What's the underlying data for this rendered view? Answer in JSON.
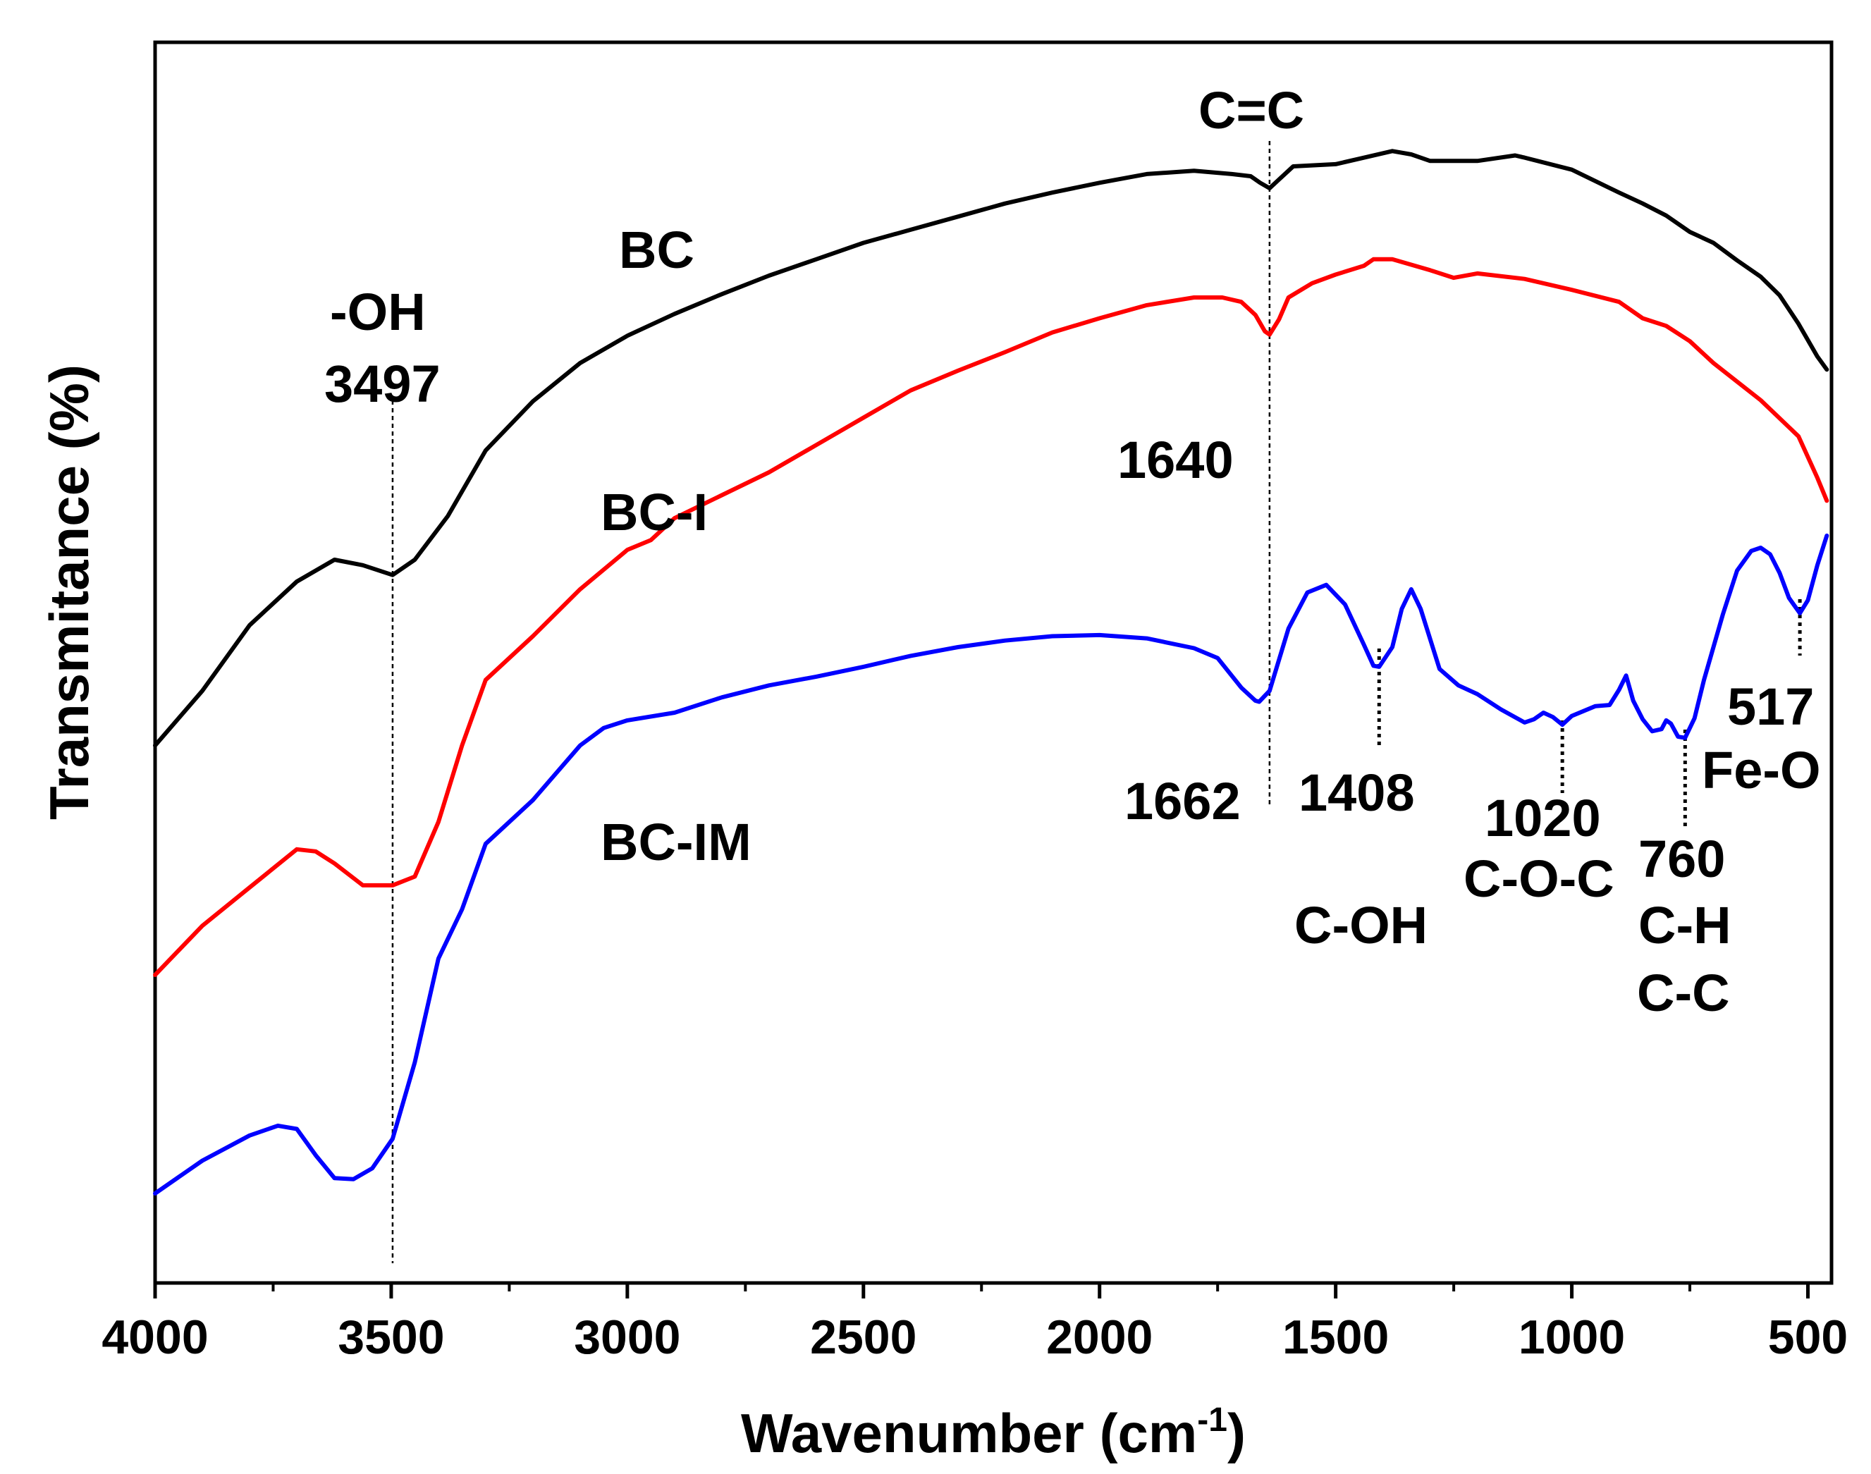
{
  "chart_data": {
    "type": "line",
    "title": "",
    "xlabel": "Wavenumber (cm",
    "xlabel_sup": "-1",
    "xlabel_close": ")",
    "ylabel": "Transmitance (%)",
    "xlim": [
      4000,
      450
    ],
    "x_reversed": true,
    "x_ticks": [
      4000,
      3500,
      3000,
      2500,
      2000,
      1500,
      1000,
      500
    ],
    "y_ticks": [],
    "ylim": [
      0,
      100
    ],
    "grid": false,
    "legend": "inline labels",
    "series": [
      {
        "name": "BC",
        "label": "BC",
        "color": "#000000",
        "points": [
          [
            4000,
            45
          ],
          [
            3900,
            50
          ],
          [
            3800,
            56
          ],
          [
            3700,
            60
          ],
          [
            3620,
            62
          ],
          [
            3560,
            61.5
          ],
          [
            3497,
            60.6
          ],
          [
            3450,
            62
          ],
          [
            3380,
            66
          ],
          [
            3300,
            72
          ],
          [
            3200,
            76.5
          ],
          [
            3100,
            80
          ],
          [
            3000,
            82.5
          ],
          [
            2900,
            84.5
          ],
          [
            2800,
            86.3
          ],
          [
            2700,
            88
          ],
          [
            2600,
            89.5
          ],
          [
            2500,
            91
          ],
          [
            2400,
            92.2
          ],
          [
            2300,
            93.4
          ],
          [
            2200,
            94.6
          ],
          [
            2100,
            95.6
          ],
          [
            2000,
            96.5
          ],
          [
            1900,
            97.3
          ],
          [
            1800,
            97.6
          ],
          [
            1720,
            97.3
          ],
          [
            1680,
            97.1
          ],
          [
            1660,
            96.5
          ],
          [
            1640,
            96.0
          ],
          [
            1620,
            96.8
          ],
          [
            1590,
            98
          ],
          [
            1500,
            98.2
          ],
          [
            1450,
            98.7
          ],
          [
            1380,
            99.4
          ],
          [
            1340,
            99.1
          ],
          [
            1300,
            98.5
          ],
          [
            1200,
            98.5
          ],
          [
            1120,
            99.0
          ],
          [
            1100,
            98.8
          ],
          [
            1000,
            97.7
          ],
          [
            900,
            95.6
          ],
          [
            850,
            94.6
          ],
          [
            800,
            93.5
          ],
          [
            750,
            92
          ],
          [
            700,
            91
          ],
          [
            650,
            89.4
          ],
          [
            600,
            87.9
          ],
          [
            560,
            86.2
          ],
          [
            520,
            83.6
          ],
          [
            480,
            80.6
          ],
          [
            460,
            79.4
          ]
        ]
      },
      {
        "name": "BC-I",
        "label": "BC-I",
        "color": "#ff0000",
        "points": [
          [
            4000,
            24
          ],
          [
            3900,
            28.5
          ],
          [
            3800,
            32
          ],
          [
            3700,
            35.5
          ],
          [
            3660,
            35.3
          ],
          [
            3620,
            34.2
          ],
          [
            3560,
            32.2
          ],
          [
            3497,
            32.2
          ],
          [
            3450,
            33
          ],
          [
            3400,
            38
          ],
          [
            3350,
            45
          ],
          [
            3300,
            51
          ],
          [
            3200,
            55
          ],
          [
            3100,
            59.3
          ],
          [
            3000,
            62.9
          ],
          [
            2950,
            63.8
          ],
          [
            2900,
            65.8
          ],
          [
            2800,
            67.9
          ],
          [
            2700,
            70
          ],
          [
            2600,
            72.5
          ],
          [
            2500,
            75
          ],
          [
            2400,
            77.5
          ],
          [
            2300,
            79.3
          ],
          [
            2200,
            81
          ],
          [
            2100,
            82.8
          ],
          [
            2000,
            84.1
          ],
          [
            1900,
            85.3
          ],
          [
            1800,
            86
          ],
          [
            1740,
            86
          ],
          [
            1700,
            85.6
          ],
          [
            1670,
            84.4
          ],
          [
            1650,
            82.9
          ],
          [
            1640,
            82.6
          ],
          [
            1620,
            84
          ],
          [
            1600,
            86
          ],
          [
            1550,
            87.3
          ],
          [
            1500,
            88.1
          ],
          [
            1440,
            88.9
          ],
          [
            1420,
            89.5
          ],
          [
            1380,
            89.5
          ],
          [
            1340,
            89.0
          ],
          [
            1300,
            88.5
          ],
          [
            1250,
            87.8
          ],
          [
            1200,
            88.2
          ],
          [
            1100,
            87.7
          ],
          [
            1000,
            86.7
          ],
          [
            900,
            85.6
          ],
          [
            850,
            84.1
          ],
          [
            800,
            83.4
          ],
          [
            750,
            82
          ],
          [
            700,
            80
          ],
          [
            600,
            76.6
          ],
          [
            520,
            73.3
          ],
          [
            480,
            69.5
          ],
          [
            460,
            67.4
          ]
        ]
      },
      {
        "name": "BC-IM",
        "label": "BC-IM",
        "color": "#0000ff",
        "points": [
          [
            4000,
            4
          ],
          [
            3900,
            7
          ],
          [
            3800,
            9.3
          ],
          [
            3740,
            10.2
          ],
          [
            3700,
            9.9
          ],
          [
            3660,
            7.5
          ],
          [
            3620,
            5.4
          ],
          [
            3580,
            5.3
          ],
          [
            3540,
            6.3
          ],
          [
            3497,
            9
          ],
          [
            3450,
            16
          ],
          [
            3400,
            25.5
          ],
          [
            3350,
            30
          ],
          [
            3300,
            36
          ],
          [
            3200,
            40
          ],
          [
            3100,
            45
          ],
          [
            3050,
            46.6
          ],
          [
            3000,
            47.3
          ],
          [
            2900,
            48
          ],
          [
            2800,
            49.4
          ],
          [
            2700,
            50.5
          ],
          [
            2600,
            51.3
          ],
          [
            2500,
            52.2
          ],
          [
            2400,
            53.2
          ],
          [
            2300,
            54
          ],
          [
            2200,
            54.6
          ],
          [
            2100,
            55
          ],
          [
            2000,
            55.1
          ],
          [
            1900,
            54.8
          ],
          [
            1800,
            53.9
          ],
          [
            1750,
            53
          ],
          [
            1700,
            50.3
          ],
          [
            1670,
            49.1
          ],
          [
            1662,
            49
          ],
          [
            1640,
            50
          ],
          [
            1600,
            55.7
          ],
          [
            1560,
            59
          ],
          [
            1520,
            59.7
          ],
          [
            1480,
            57.9
          ],
          [
            1440,
            54.2
          ],
          [
            1420,
            52.3
          ],
          [
            1408,
            52.2
          ],
          [
            1380,
            54
          ],
          [
            1360,
            57.5
          ],
          [
            1340,
            59.3
          ],
          [
            1320,
            57.5
          ],
          [
            1280,
            52
          ],
          [
            1240,
            50.5
          ],
          [
            1200,
            49.7
          ],
          [
            1150,
            48.3
          ],
          [
            1100,
            47.1
          ],
          [
            1080,
            47.4
          ],
          [
            1060,
            48
          ],
          [
            1040,
            47.6
          ],
          [
            1020,
            46.9
          ],
          [
            1000,
            47.7
          ],
          [
            950,
            48.6
          ],
          [
            920,
            48.7
          ],
          [
            900,
            50.1
          ],
          [
            885,
            51.4
          ],
          [
            870,
            49.1
          ],
          [
            850,
            47.4
          ],
          [
            830,
            46.3
          ],
          [
            810,
            46.5
          ],
          [
            800,
            47.3
          ],
          [
            790,
            47
          ],
          [
            775,
            45.8
          ],
          [
            760,
            45.7
          ],
          [
            740,
            47.5
          ],
          [
            720,
            51
          ],
          [
            700,
            54
          ],
          [
            680,
            57
          ],
          [
            650,
            61
          ],
          [
            620,
            62.8
          ],
          [
            600,
            63.1
          ],
          [
            580,
            62.5
          ],
          [
            560,
            60.8
          ],
          [
            540,
            58.5
          ],
          [
            517,
            57.1
          ],
          [
            500,
            58.3
          ],
          [
            480,
            61.5
          ],
          [
            460,
            64.2
          ]
        ]
      }
    ],
    "annotations": {
      "cc_label": "C=C",
      "oh_label": "-OH",
      "oh_value": "3497",
      "v1640": "1640",
      "v1662": "1662",
      "v1408": "1408",
      "coh": "C-OH",
      "v1020": "1020",
      "coc": "C-O-C",
      "v760": "760",
      "ch": "C-H",
      "cc2": "C-C",
      "v517": "517",
      "feo": "Fe-O"
    },
    "marker_lines": [
      {
        "x": 3497,
        "style": "thin"
      },
      {
        "x": 1640,
        "style": "thin"
      },
      {
        "x": 1408,
        "style": "dotted"
      },
      {
        "x": 1020,
        "style": "dotted"
      },
      {
        "x": 760,
        "style": "dotted"
      },
      {
        "x": 517,
        "style": "dotted"
      }
    ]
  }
}
